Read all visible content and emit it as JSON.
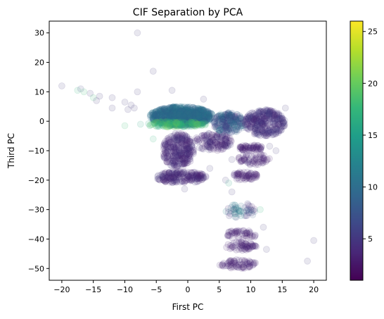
{
  "chart_data": {
    "type": "scatter",
    "title": "CIF Separation by PCA",
    "xlabel": "First PC",
    "ylabel": "Third PC",
    "xlim": [
      -22,
      22
    ],
    "ylim": [
      -54,
      34
    ],
    "xticks": [
      -20,
      -15,
      -10,
      -5,
      0,
      5,
      10,
      15,
      20
    ],
    "yticks": [
      30,
      20,
      10,
      0,
      -10,
      -20,
      -30,
      -40,
      -50
    ],
    "grid": false,
    "point_alpha": 0.12,
    "colorbar": {
      "label": "",
      "range": [
        1,
        26
      ],
      "ticks": [
        5,
        10,
        15,
        20,
        25
      ],
      "colormap": "viridis",
      "stops": [
        "#440154",
        "#482878",
        "#3e4a89",
        "#31688e",
        "#26828e",
        "#1f9e89",
        "#35b779",
        "#6ece58",
        "#b5de2b",
        "#fde725"
      ]
    },
    "clusters": [
      {
        "x": [
          -6,
          4
        ],
        "y": [
          -1.5,
          5
        ],
        "c": [
          8,
          12
        ],
        "n": 900
      },
      {
        "x": [
          -3,
          2
        ],
        "y": [
          -0.5,
          3.5
        ],
        "c": [
          9,
          11
        ],
        "n": 400
      },
      {
        "x": [
          -7,
          3
        ],
        "y": [
          -2,
          0
        ],
        "c": [
          15,
          21
        ],
        "n": 140
      },
      {
        "x": [
          -4,
          1
        ],
        "y": [
          -16,
          -4
        ],
        "c": [
          3,
          5
        ],
        "n": 300
      },
      {
        "x": [
          -5,
          3
        ],
        "y": [
          -21,
          -17
        ],
        "c": [
          3,
          5
        ],
        "n": 200
      },
      {
        "x": [
          1,
          7
        ],
        "y": [
          -10,
          -4
        ],
        "c": [
          3,
          5
        ],
        "n": 140
      },
      {
        "x": [
          4,
          9
        ],
        "y": [
          -4,
          3
        ],
        "c": [
          4,
          12
        ],
        "n": 220
      },
      {
        "x": [
          9,
          15.5
        ],
        "y": [
          -5,
          4
        ],
        "c": [
          3,
          6
        ],
        "n": 320
      },
      {
        "x": [
          8,
          12
        ],
        "y": [
          -10,
          -8
        ],
        "c": [
          3,
          4
        ],
        "n": 60
      },
      {
        "x": [
          8,
          13
        ],
        "y": [
          -15,
          -11
        ],
        "c": [
          3,
          4
        ],
        "n": 60
      },
      {
        "x": [
          7,
          11
        ],
        "y": [
          -20,
          -17
        ],
        "c": [
          3,
          4
        ],
        "n": 60
      },
      {
        "x": [
          6,
          11
        ],
        "y": [
          -33,
          -28
        ],
        "c": [
          3,
          15
        ],
        "n": 50
      },
      {
        "x": [
          6,
          11
        ],
        "y": [
          -40,
          -37
        ],
        "c": [
          3,
          4
        ],
        "n": 50
      },
      {
        "x": [
          6,
          11
        ],
        "y": [
          -44,
          -41
        ],
        "c": [
          3,
          4
        ],
        "n": 60
      },
      {
        "x": [
          5,
          11
        ],
        "y": [
          -50,
          -47
        ],
        "c": [
          3,
          4
        ],
        "n": 70
      }
    ],
    "points": [
      {
        "x": -20,
        "y": 12,
        "c": 5
      },
      {
        "x": -17.5,
        "y": 10.5,
        "c": 17
      },
      {
        "x": -17,
        "y": 11,
        "c": 6
      },
      {
        "x": -16.5,
        "y": 10,
        "c": 18
      },
      {
        "x": -15.5,
        "y": 9.5,
        "c": 5
      },
      {
        "x": -15,
        "y": 8,
        "c": 18
      },
      {
        "x": -14.5,
        "y": 7,
        "c": 5
      },
      {
        "x": -14,
        "y": 8.5,
        "c": 5
      },
      {
        "x": -12,
        "y": 8,
        "c": 5
      },
      {
        "x": -12,
        "y": 4.5,
        "c": 5
      },
      {
        "x": -10,
        "y": 6.5,
        "c": 5
      },
      {
        "x": -9.5,
        "y": 4,
        "c": 5
      },
      {
        "x": -9,
        "y": 5.5,
        "c": 5
      },
      {
        "x": -8.5,
        "y": 4.5,
        "c": 5
      },
      {
        "x": -8,
        "y": 10,
        "c": 5
      },
      {
        "x": -8,
        "y": 30,
        "c": 5
      },
      {
        "x": -5.5,
        "y": 17,
        "c": 5
      },
      {
        "x": -2.5,
        "y": 10.5,
        "c": 5
      },
      {
        "x": -10,
        "y": -1.5,
        "c": 18
      },
      {
        "x": -7.5,
        "y": -1,
        "c": 16
      },
      {
        "x": -5.5,
        "y": -6,
        "c": 17
      },
      {
        "x": -0.5,
        "y": -23,
        "c": 5
      },
      {
        "x": 3.5,
        "y": -16,
        "c": 5
      },
      {
        "x": 6,
        "y": -20,
        "c": 5
      },
      {
        "x": 6.5,
        "y": -21,
        "c": 16
      },
      {
        "x": 7,
        "y": -24,
        "c": 5
      },
      {
        "x": 7,
        "y": -13,
        "c": 5
      },
      {
        "x": 9.5,
        "y": -14,
        "c": 5
      },
      {
        "x": 13,
        "y": -8.5,
        "c": 5
      },
      {
        "x": 14,
        "y": -10,
        "c": 5
      },
      {
        "x": 12,
        "y": -36,
        "c": 5
      },
      {
        "x": 12.5,
        "y": -43.5,
        "c": 5
      },
      {
        "x": 11.5,
        "y": -30,
        "c": 17
      },
      {
        "x": 9.5,
        "y": -28,
        "c": 6
      },
      {
        "x": 19,
        "y": -47.5,
        "c": 5
      },
      {
        "x": 20,
        "y": -40.5,
        "c": 5
      },
      {
        "x": 2.5,
        "y": 7.5,
        "c": 5
      },
      {
        "x": 15.5,
        "y": 4.5,
        "c": 5
      }
    ]
  }
}
